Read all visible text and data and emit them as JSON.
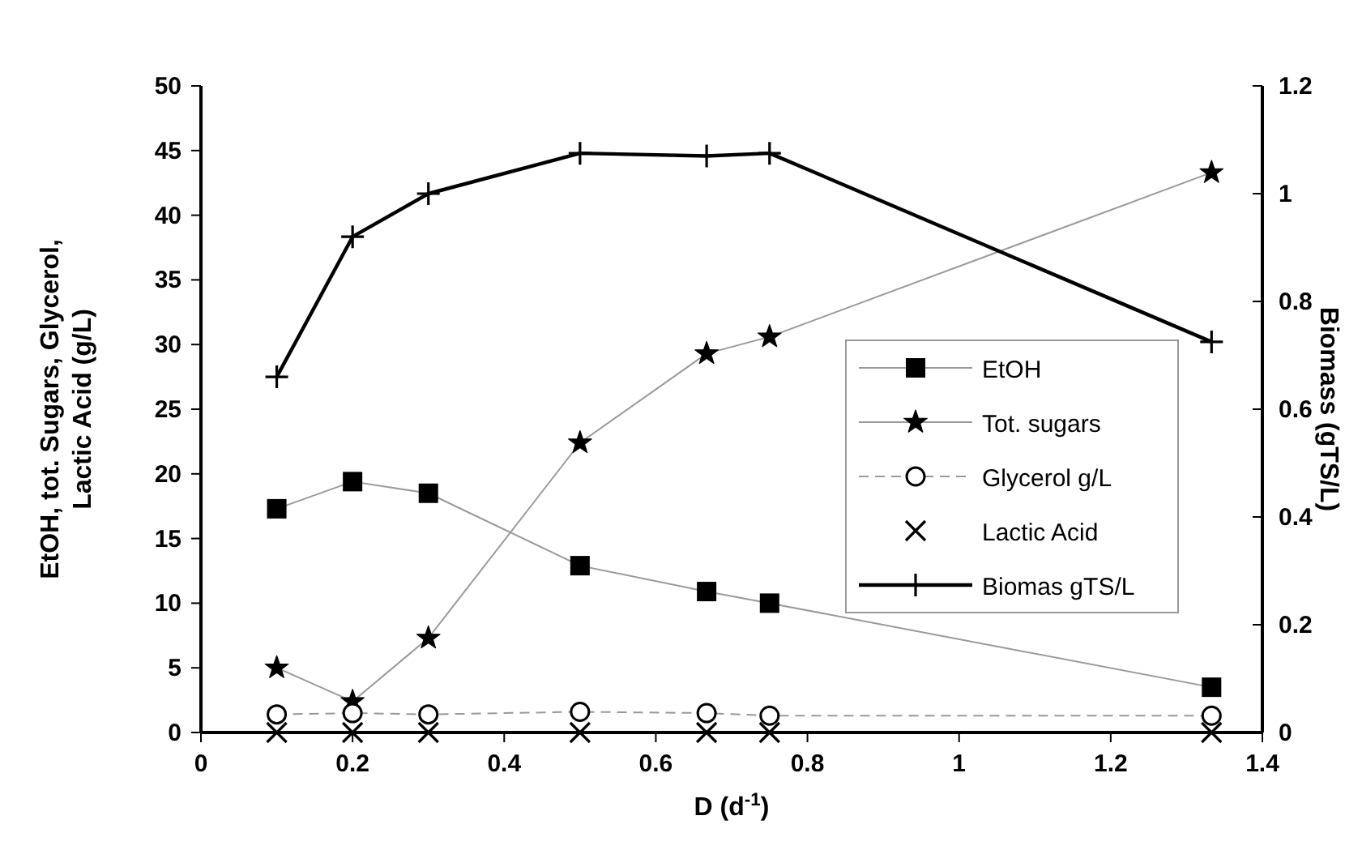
{
  "chart_data": {
    "type": "line",
    "xlabel": "D (d$^{-1}$)",
    "ylabel": "EtOH, tot. Sugars, Glycerol,\nLactic Acid (g/L)",
    "y2label": "Biomass (gTS/L)",
    "x": [
      0.1,
      0.2,
      0.3,
      0.5,
      0.667,
      0.75,
      1.333
    ],
    "series": [
      {
        "name": "EtOH",
        "color": "#000000",
        "marker": "square",
        "line_style": "solid",
        "values": [
          17.3,
          19.4,
          18.5,
          12.9,
          10.9,
          10.0,
          3.5
        ]
      },
      {
        "name": "Tot. sugars",
        "color": "#000000",
        "marker": "star",
        "line_style": "solid",
        "values": [
          5.0,
          2.4,
          7.3,
          22.4,
          29.3,
          30.6,
          43.3
        ]
      },
      {
        "name": "Glycerol g/L",
        "color": "#000000",
        "marker": "circle",
        "line_style": "dashed",
        "values": [
          1.4,
          1.5,
          1.4,
          1.6,
          1.5,
          1.3,
          1.3
        ]
      },
      {
        "name": "Lactic Acid",
        "type": "scatter",
        "color": "#000000",
        "marker": "cross",
        "values": [
          0,
          0,
          0,
          0,
          0,
          0,
          0
        ]
      },
      {
        "name": "Biomas gTS/L",
        "color": "#000000",
        "marker": "plus",
        "line_style": "solid",
        "axis": "y2",
        "values": [
          0.66,
          0.92,
          1.0,
          1.075,
          1.07,
          1.075,
          0.725
        ]
      }
    ],
    "xlim": [
      0,
      1.4
    ],
    "xticks": [
      0,
      0.2,
      0.4,
      0.6,
      0.8,
      1,
      1.2,
      1.4
    ],
    "ylim": [
      0,
      50
    ],
    "yticks": [
      0,
      5,
      10,
      15,
      20,
      25,
      30,
      35,
      40,
      45,
      50
    ],
    "y2lim": [
      0,
      1.2
    ],
    "y2ticks": [
      0,
      0.2,
      0.4,
      0.6,
      0.8,
      1,
      1.2
    ],
    "grid": false,
    "legend": "right"
  }
}
